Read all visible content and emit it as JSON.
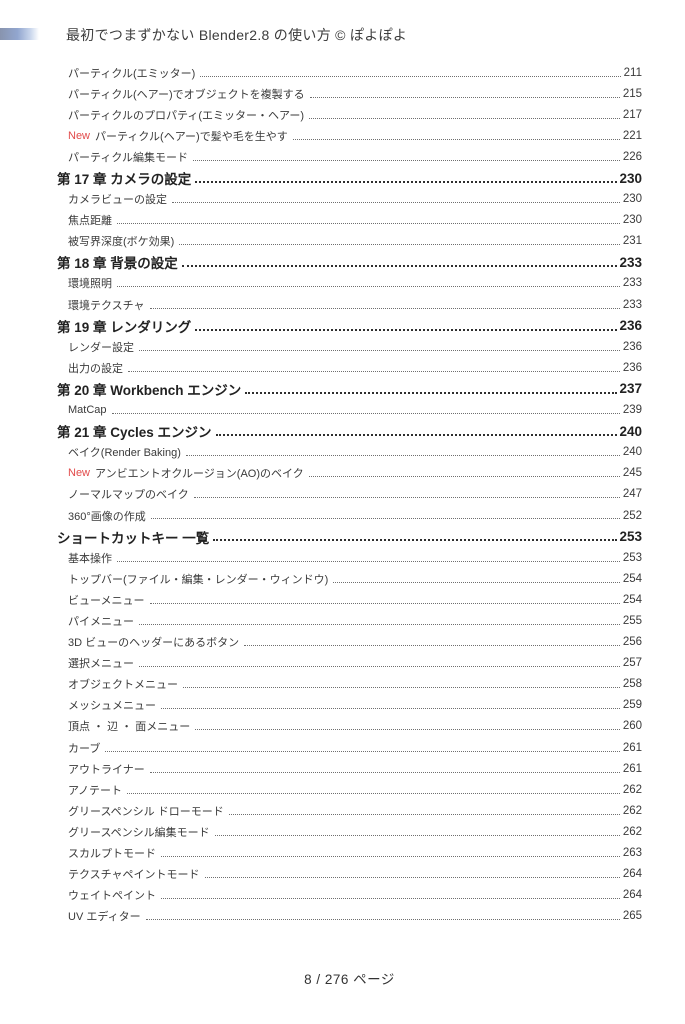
{
  "header": {
    "title": "最初でつまずかない Blender2.8 の使い方 © ぽよぽよ"
  },
  "colors": {
    "new_badge": "#e24b4b",
    "accent_bar_left": "#8894ae",
    "accent_bar_mid": "#92a6cf",
    "accent_bar_fade": "#ffffff",
    "body_text": "#3a3a3a"
  },
  "toc": {
    "entries": [
      {
        "level": "sub",
        "badge": "",
        "label": "パーティクル(エミッター)",
        "page": "211"
      },
      {
        "level": "sub",
        "badge": "",
        "label": "パーティクル(ヘアー)でオブジェクトを複製する",
        "page": "215"
      },
      {
        "level": "sub",
        "badge": "",
        "label": "パーティクルのプロパティ(エミッター・ヘアー)",
        "page": "217"
      },
      {
        "level": "sub",
        "badge": "New",
        "label": "パーティクル(ヘアー)で髪や毛を生やす",
        "page": "221"
      },
      {
        "level": "sub",
        "badge": "",
        "label": "パーティクル編集モード",
        "page": "226"
      },
      {
        "level": "chapter",
        "badge": "",
        "label": "第 17 章  カメラの設定",
        "page": "230"
      },
      {
        "level": "sub",
        "badge": "",
        "label": "カメラビューの設定",
        "page": "230"
      },
      {
        "level": "sub",
        "badge": "",
        "label": "焦点距離",
        "page": "230"
      },
      {
        "level": "sub",
        "badge": "",
        "label": "被写界深度(ボケ効果)",
        "page": "231"
      },
      {
        "level": "chapter",
        "badge": "",
        "label": "第 18 章  背景の設定",
        "page": "233"
      },
      {
        "level": "sub",
        "badge": "",
        "label": "環境照明",
        "page": "233"
      },
      {
        "level": "sub",
        "badge": "",
        "label": "環境テクスチャ",
        "page": "233"
      },
      {
        "level": "chapter",
        "badge": "",
        "label": "第 19 章  レンダリング",
        "page": "236"
      },
      {
        "level": "sub",
        "badge": "",
        "label": "レンダー設定",
        "page": "236"
      },
      {
        "level": "sub",
        "badge": "",
        "label": "出力の設定",
        "page": "236"
      },
      {
        "level": "chapter",
        "badge": "",
        "label": "第 20 章  Workbench エンジン",
        "page": "237"
      },
      {
        "level": "sub",
        "badge": "",
        "label": "MatCap",
        "page": "239"
      },
      {
        "level": "chapter",
        "badge": "",
        "label": "第 21 章  Cycles エンジン",
        "page": "240"
      },
      {
        "level": "sub",
        "badge": "",
        "label": "ベイク(Render Baking)",
        "page": "240"
      },
      {
        "level": "sub",
        "badge": "New",
        "label": "アンビエントオクルージョン(AO)のベイク",
        "page": "245"
      },
      {
        "level": "sub",
        "badge": "",
        "label": "ノーマルマップのベイク",
        "page": "247"
      },
      {
        "level": "sub",
        "badge": "",
        "label": "360°画像の作成",
        "page": "252"
      },
      {
        "level": "chapter",
        "badge": "",
        "label": "ショートカットキー 一覧",
        "page": "253"
      },
      {
        "level": "sub",
        "badge": "",
        "label": "基本操作",
        "page": "253"
      },
      {
        "level": "sub",
        "badge": "",
        "label": "トップバー(ファイル・編集・レンダー・ウィンドウ)",
        "page": "254"
      },
      {
        "level": "sub",
        "badge": "",
        "label": "ビューメニュー",
        "page": "254"
      },
      {
        "level": "sub",
        "badge": "",
        "label": "パイメニュー",
        "page": "255"
      },
      {
        "level": "sub",
        "badge": "",
        "label": "3D ビューのヘッダーにあるボタン",
        "page": "256"
      },
      {
        "level": "sub",
        "badge": "",
        "label": "選択メニュー",
        "page": "257"
      },
      {
        "level": "sub",
        "badge": "",
        "label": "オブジェクトメニュー",
        "page": "258"
      },
      {
        "level": "sub",
        "badge": "",
        "label": "メッシュメニュー",
        "page": "259"
      },
      {
        "level": "sub",
        "badge": "",
        "label": "頂点 ・ 辺 ・ 面メニュー",
        "page": "260"
      },
      {
        "level": "sub",
        "badge": "",
        "label": "カーブ",
        "page": "261"
      },
      {
        "level": "sub",
        "badge": "",
        "label": "アウトライナー",
        "page": "261"
      },
      {
        "level": "sub",
        "badge": "",
        "label": "アノテート",
        "page": "262"
      },
      {
        "level": "sub",
        "badge": "",
        "label": "グリースペンシル ドローモード",
        "page": "262"
      },
      {
        "level": "sub",
        "badge": "",
        "label": "グリースペンシル編集モード",
        "page": "262"
      },
      {
        "level": "sub",
        "badge": "",
        "label": "スカルプトモード",
        "page": "263"
      },
      {
        "level": "sub",
        "badge": "",
        "label": "テクスチャペイントモード",
        "page": "264"
      },
      {
        "level": "sub",
        "badge": "",
        "label": "ウェイトペイント",
        "page": "264"
      },
      {
        "level": "sub",
        "badge": "",
        "label": "UV エディター",
        "page": "265"
      }
    ]
  },
  "footer": {
    "page_indicator": "8 / 276 ページ"
  }
}
